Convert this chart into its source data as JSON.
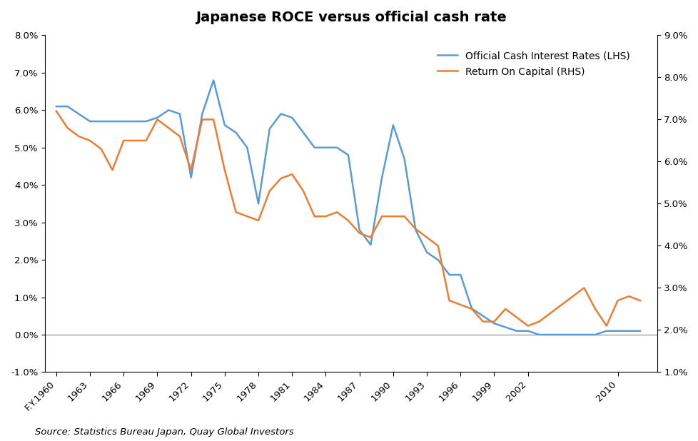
{
  "title": "Japanese ROCE versus official cash rate",
  "legend_entries": [
    "Official Cash Interest Rates (LHS)",
    "Return On Capital (RHS)"
  ],
  "source": "Source: Statistics Bureau Japan, Quay Global Investors",
  "lhs_color": "#5B9BD5",
  "rhs_color": "#ED7D31",
  "lhs_ylim": [
    -0.01,
    0.08
  ],
  "rhs_ylim": [
    0.01,
    0.09
  ],
  "lhs_yticks": [
    -0.01,
    0.0,
    0.01,
    0.02,
    0.03,
    0.04,
    0.05,
    0.06,
    0.07,
    0.08
  ],
  "rhs_yticks": [
    0.01,
    0.02,
    0.03,
    0.04,
    0.05,
    0.06,
    0.07,
    0.08,
    0.09
  ],
  "xtick_positions": [
    1960,
    1963,
    1966,
    1969,
    1972,
    1975,
    1978,
    1981,
    1984,
    1987,
    1990,
    1993,
    1996,
    1999,
    2002,
    2010
  ],
  "xtick_labels": [
    "F.Y.1960",
    "1963",
    "1966",
    "1969",
    "1972",
    "1975",
    "1978",
    "1981",
    "1984",
    "1987",
    "1990",
    "1993",
    "1996",
    "1999",
    "2002",
    "2010"
  ],
  "xlim": [
    1959.0,
    2013.5
  ],
  "cash_rate_x": [
    1960,
    1961,
    1962,
    1963,
    1964,
    1965,
    1966,
    1967,
    1968,
    1969,
    1970,
    1971,
    1972,
    1973,
    1974,
    1975,
    1976,
    1977,
    1978,
    1979,
    1980,
    1981,
    1982,
    1983,
    1984,
    1985,
    1986,
    1987,
    1988,
    1989,
    1990,
    1991,
    1992,
    1993,
    1994,
    1995,
    1996,
    1997,
    1998,
    1999,
    2000,
    2001,
    2002,
    2003,
    2004,
    2005,
    2006,
    2007,
    2008,
    2009,
    2010,
    2011,
    2012
  ],
  "cash_rate_y": [
    0.061,
    0.061,
    0.059,
    0.057,
    0.057,
    0.057,
    0.057,
    0.057,
    0.057,
    0.058,
    0.06,
    0.059,
    0.042,
    0.059,
    0.068,
    0.056,
    0.054,
    0.05,
    0.035,
    0.055,
    0.059,
    0.058,
    0.054,
    0.05,
    0.05,
    0.05,
    0.048,
    0.028,
    0.024,
    0.042,
    0.056,
    0.047,
    0.028,
    0.022,
    0.02,
    0.016,
    0.016,
    0.007,
    0.005,
    0.003,
    0.002,
    0.001,
    0.001,
    0.0,
    0.0,
    0.0,
    0.0,
    0.0,
    0.0,
    0.001,
    0.001,
    0.001,
    0.001
  ],
  "roce_x": [
    1960,
    1961,
    1962,
    1963,
    1964,
    1965,
    1966,
    1967,
    1968,
    1969,
    1970,
    1971,
    1972,
    1973,
    1974,
    1975,
    1976,
    1977,
    1978,
    1979,
    1980,
    1981,
    1982,
    1983,
    1984,
    1985,
    1986,
    1987,
    1988,
    1989,
    1990,
    1991,
    1992,
    1993,
    1994,
    1995,
    1996,
    1997,
    1998,
    1999,
    2000,
    2001,
    2002,
    2003,
    2004,
    2005,
    2006,
    2007,
    2008,
    2009,
    2010,
    2011,
    2012
  ],
  "roce_y": [
    0.072,
    0.068,
    0.066,
    0.065,
    0.063,
    0.058,
    0.065,
    0.065,
    0.065,
    0.07,
    0.068,
    0.066,
    0.058,
    0.07,
    0.07,
    0.058,
    0.048,
    0.047,
    0.046,
    0.053,
    0.056,
    0.057,
    0.053,
    0.047,
    0.047,
    0.048,
    0.046,
    0.043,
    0.042,
    0.047,
    0.047,
    0.047,
    0.044,
    0.042,
    0.04,
    0.027,
    0.026,
    0.025,
    0.022,
    0.022,
    0.025,
    0.023,
    0.021,
    0.022,
    0.024,
    0.026,
    0.028,
    0.03,
    0.025,
    0.021,
    0.027,
    0.028,
    0.027
  ]
}
